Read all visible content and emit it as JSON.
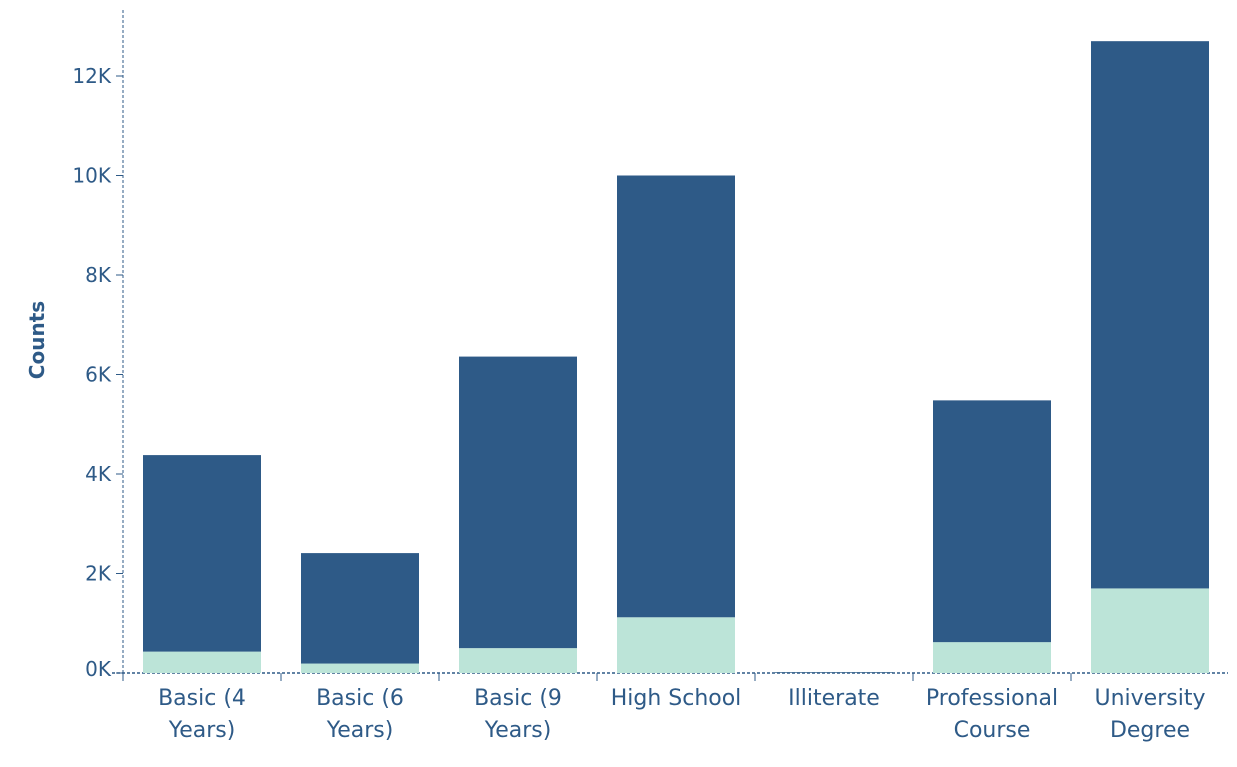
{
  "chart_data": {
    "type": "bar",
    "stacked": true,
    "title": "",
    "xlabel": "",
    "ylabel": "Counts",
    "ylim": [
      0,
      13000
    ],
    "yticks": [
      0,
      2000,
      4000,
      6000,
      8000,
      10000,
      12000
    ],
    "ytick_labels": [
      "0K",
      "2K",
      "4K",
      "6K",
      "8K",
      "10K",
      "12K"
    ],
    "categories": [
      [
        "Basic (4",
        "Years)"
      ],
      [
        "Basic (6",
        "Years)"
      ],
      [
        "Basic (9",
        "Years)"
      ],
      [
        "High School"
      ],
      [
        "Illiterate"
      ],
      [
        "Professional",
        "Course"
      ],
      [
        "University",
        "Degree"
      ]
    ],
    "series": [
      {
        "values": [
          430,
          190,
          500,
          1120,
          4,
          620,
          1700
        ],
        "color": "#bce4d8"
      },
      {
        "values": [
          3950,
          2220,
          5860,
          8880,
          14,
          4860,
          11000
        ],
        "color": "#2e5a87"
      }
    ],
    "grid": false,
    "legend": "none",
    "axis_color": "#2e5a87"
  }
}
